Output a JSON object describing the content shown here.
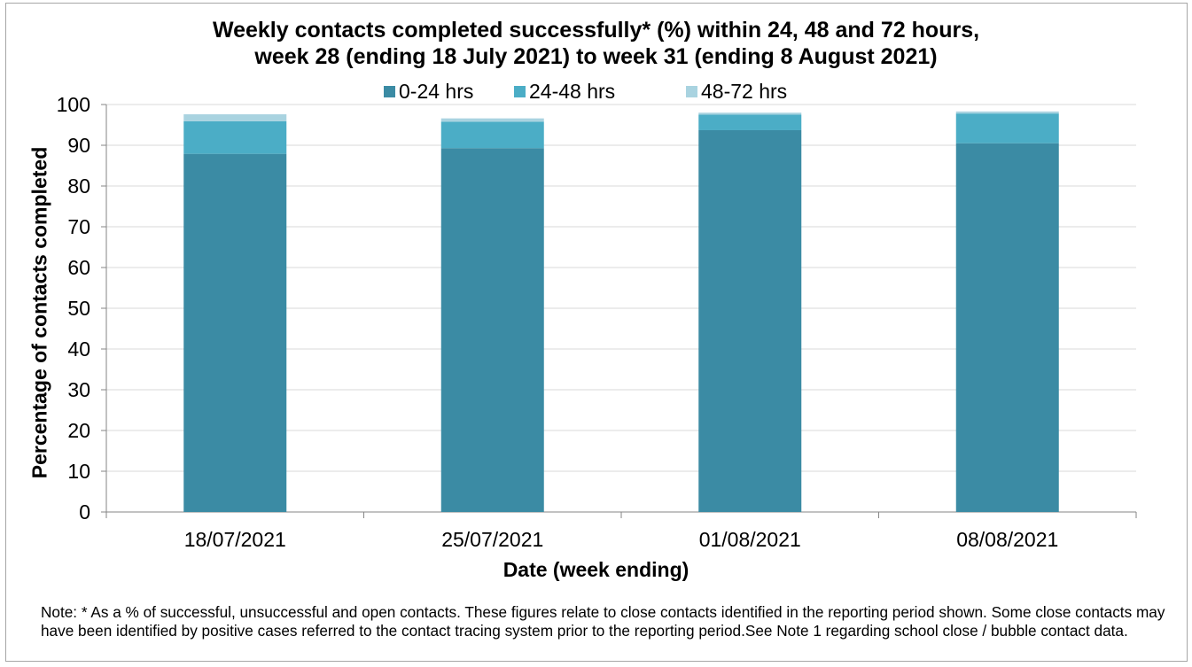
{
  "chart_data": {
    "type": "bar",
    "stacked": true,
    "title": "Weekly contacts completed successfully* (%) within 24, 48 and 72 hours,",
    "subtitle": "week 28 (ending 18 July 2021) to week 31 (ending 8 August 2021)",
    "xlabel": "Date (week ending)",
    "ylabel": "Percentage of contacts completed",
    "ylim": [
      0,
      100
    ],
    "yticks": [
      0,
      10,
      20,
      30,
      40,
      50,
      60,
      70,
      80,
      90,
      100
    ],
    "categories": [
      "18/07/2021",
      "25/07/2021",
      "01/08/2021",
      "08/08/2021"
    ],
    "series": [
      {
        "name": "0-24 hrs",
        "color": "#3b8ba4",
        "values": [
          87.9,
          89.3,
          93.7,
          90.5
        ]
      },
      {
        "name": "24-48 hrs",
        "color": "#4badc6",
        "values": [
          8.0,
          6.5,
          3.8,
          7.3
        ]
      },
      {
        "name": "48-72 hrs",
        "color": "#a9d3e0",
        "values": [
          1.7,
          0.8,
          0.5,
          0.5
        ]
      }
    ],
    "grid": true,
    "legend_position": "top"
  },
  "note": "Note: * As a % of successful, unsuccessful and open contacts. These figures relate to close contacts identified in the reporting period shown. Some close contacts may have been identified by positive cases referred to the contact tracing system prior to the reporting period.See Note 1 regarding school close / bubble contact data."
}
